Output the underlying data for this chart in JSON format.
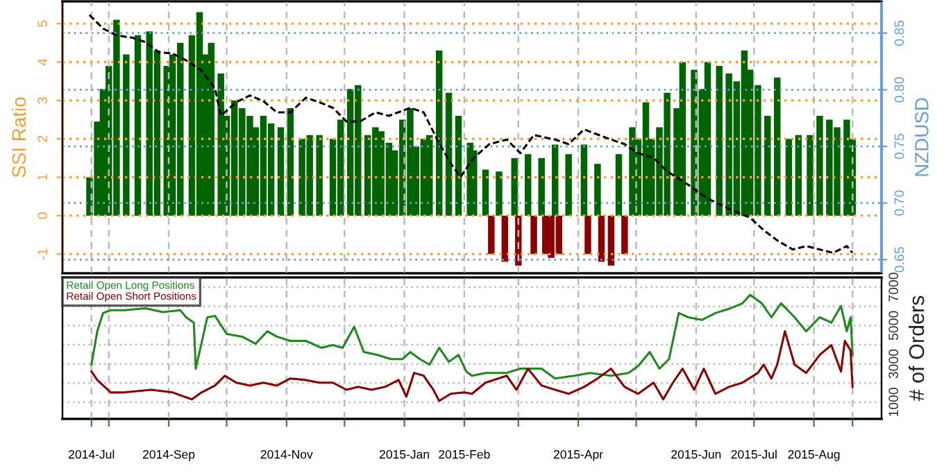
{
  "chart_data": [
    {
      "type": "bar",
      "ylabel": "SSI Ratio",
      "y2label": "NZDUSD",
      "grid": true,
      "tick_labels": "y",
      "xlim": [
        "2014-07-08",
        "2015-09-05"
      ],
      "xticks": [
        {
          "value": "2014-07-23",
          "label": null
        },
        {
          "value": "2014-08-01",
          "label": null
        },
        {
          "value": "2014-09-01",
          "label": null
        },
        {
          "value": "2014-10-01",
          "label": null
        },
        {
          "value": "2014-11-01",
          "label": null
        },
        {
          "value": "2014-12-01",
          "label": null
        },
        {
          "value": "2015-01-01",
          "label": null
        },
        {
          "value": "2015-02-01",
          "label": null
        },
        {
          "value": "2015-03-01",
          "label": null
        },
        {
          "value": "2015-04-01",
          "label": null
        },
        {
          "value": "2015-05-01",
          "label": null
        },
        {
          "value": "2015-06-01",
          "label": null
        },
        {
          "value": "2015-07-01",
          "label": null
        },
        {
          "value": "2015-08-01",
          "label": null
        },
        {
          "value": "2015-08-21",
          "label": null
        }
      ],
      "ylim": [
        -1.5,
        5.58
      ],
      "yticks": [
        -1,
        0,
        1,
        2,
        3,
        4,
        5
      ],
      "y2lim": [
        0.638,
        0.878
      ],
      "y2ticks": [
        {
          "value": 0.65,
          "label": "0.65"
        },
        {
          "value": 0.7,
          "label": "0.70"
        },
        {
          "value": 0.75,
          "label": "0.75"
        },
        {
          "value": 0.8,
          "label": "0.80"
        },
        {
          "value": 0.85,
          "label": "0.85"
        }
      ],
      "series": [
        {
          "type": "bar",
          "x": [
            "2014-07-22",
            "2014-07-26",
            "2014-07-29",
            "2014-08-01",
            "2014-08-05",
            "2014-08-10",
            "2014-08-16",
            "2014-08-22",
            "2014-08-26",
            "2014-08-31",
            "2014-09-03",
            "2014-09-07",
            "2014-09-13",
            "2014-09-17",
            "2014-09-20",
            "2014-09-23",
            "2014-09-28",
            "2014-10-01",
            "2014-10-05",
            "2014-10-09",
            "2014-10-13",
            "2014-10-16",
            "2014-10-20",
            "2014-10-24",
            "2014-10-29",
            "2014-11-03",
            "2014-11-09",
            "2014-11-13",
            "2014-11-18",
            "2014-11-25",
            "2014-11-29",
            "2014-12-04",
            "2014-12-08",
            "2014-12-13",
            "2014-12-17",
            "2014-12-20",
            "2014-12-24",
            "2014-12-27",
            "2014-12-31",
            "2015-01-04",
            "2015-01-07",
            "2015-01-11",
            "2015-01-14",
            "2015-01-19",
            "2015-01-24",
            "2015-01-29",
            "2015-02-04",
            "2015-02-06",
            "2015-02-12",
            "2015-02-15",
            "2015-02-19",
            "2015-02-22",
            "2015-02-27",
            "2015-03-01",
            "2015-03-06",
            "2015-03-09",
            "2015-03-13",
            "2015-03-15",
            "2015-03-18",
            "2015-03-20",
            "2015-03-22",
            "2015-03-27",
            "2015-04-04",
            "2015-04-06",
            "2015-04-11",
            "2015-04-13",
            "2015-04-18",
            "2015-04-22",
            "2015-04-25",
            "2015-04-29",
            "2015-05-02",
            "2015-05-06",
            "2015-05-09",
            "2015-05-13",
            "2015-05-17",
            "2015-05-22",
            "2015-05-25",
            "2015-05-31",
            "2015-06-04",
            "2015-06-07",
            "2015-06-13",
            "2015-06-18",
            "2015-06-22",
            "2015-06-26",
            "2015-06-29",
            "2015-07-03",
            "2015-07-08",
            "2015-07-13",
            "2015-07-19",
            "2015-07-24",
            "2015-07-30",
            "2015-08-04",
            "2015-08-09",
            "2015-08-13",
            "2015-08-18",
            "2015-08-21"
          ],
          "values": [
            1.0,
            2.45,
            3.3,
            3.9,
            5.1,
            4.2,
            4.7,
            4.8,
            4.3,
            3.9,
            4.2,
            4.5,
            4.7,
            5.3,
            4.2,
            4.5,
            3.7,
            2.6,
            3.0,
            2.8,
            2.6,
            2.3,
            2.6,
            2.4,
            2.3,
            2.8,
            2.0,
            2.1,
            2.1,
            2.0,
            2.5,
            3.3,
            3.4,
            2.1,
            2.3,
            2.2,
            1.9,
            1.7,
            2.5,
            2.8,
            1.8,
            2.0,
            2.1,
            4.3,
            3.2,
            2.6,
            1.9,
            1.7,
            1.2,
            -1.0,
            1.15,
            -1.2,
            1.5,
            -1.3,
            1.6,
            -1.0,
            1.5,
            -1.0,
            -1.1,
            1.85,
            -1.0,
            1.6,
            1.85,
            -1.0,
            1.35,
            -1.2,
            -1.3,
            1.6,
            -1.0,
            2.3,
            2.0,
            2.95,
            2.0,
            2.3,
            3.2,
            2.8,
            4.0,
            3.8,
            3.3,
            4.0,
            3.9,
            3.7,
            3.5,
            4.3,
            3.8,
            3.4,
            2.6,
            3.6,
            2.0,
            2.1,
            2.1,
            2.6,
            2.5,
            2.3,
            2.5,
            2.0
          ],
          "colors": [
            "#006400",
            "#006400",
            "#006400",
            "#006400",
            "#006400",
            "#006400",
            "#006400",
            "#006400",
            "#006400",
            "#006400",
            "#006400",
            "#006400",
            "#006400",
            "#006400",
            "#006400",
            "#006400",
            "#006400",
            "#006400",
            "#006400",
            "#006400",
            "#006400",
            "#006400",
            "#006400",
            "#006400",
            "#006400",
            "#006400",
            "#006400",
            "#006400",
            "#006400",
            "#006400",
            "#006400",
            "#006400",
            "#006400",
            "#006400",
            "#006400",
            "#006400",
            "#006400",
            "#006400",
            "#006400",
            "#006400",
            "#006400",
            "#006400",
            "#006400",
            "#006400",
            "#006400",
            "#006400",
            "#006400",
            "#006400",
            "#006400",
            "#8b0000",
            "#006400",
            "#8b0000",
            "#006400",
            "#8b0000",
            "#006400",
            "#8b0000",
            "#006400",
            "#8b0000",
            "#8b0000",
            "#006400",
            "#8b0000",
            "#006400",
            "#006400",
            "#8b0000",
            "#006400",
            "#8b0000",
            "#8b0000",
            "#006400",
            "#8b0000",
            "#006400",
            "#006400",
            "#006400",
            "#006400",
            "#006400",
            "#006400",
            "#006400",
            "#006400",
            "#006400",
            "#006400",
            "#006400",
            "#006400",
            "#006400",
            "#006400",
            "#006400",
            "#006400",
            "#006400",
            "#006400",
            "#006400",
            "#006400",
            "#006400",
            "#006400",
            "#006400",
            "#006400",
            "#006400",
            "#006400",
            "#006400"
          ]
        },
        {
          "type": "line",
          "axis": "y2",
          "color": "#000000",
          "line_style": "dashed",
          "x": [
            "2014-07-22",
            "2014-07-29",
            "2014-08-05",
            "2014-08-13",
            "2014-08-20",
            "2014-08-27",
            "2014-09-03",
            "2014-09-10",
            "2014-09-18",
            "2014-09-25",
            "2014-09-28",
            "2014-10-06",
            "2014-10-13",
            "2014-10-20",
            "2014-10-27",
            "2014-11-03",
            "2014-11-11",
            "2014-11-18",
            "2014-11-25",
            "2014-12-02",
            "2014-12-09",
            "2014-12-17",
            "2014-12-24",
            "2015-01-04",
            "2015-01-11",
            "2015-01-18",
            "2015-01-25",
            "2015-01-30",
            "2015-02-06",
            "2015-02-14",
            "2015-02-23",
            "2015-03-02",
            "2015-03-09",
            "2015-03-20",
            "2015-03-27",
            "2015-04-04",
            "2015-04-18",
            "2015-04-25",
            "2015-05-02",
            "2015-05-10",
            "2015-05-17",
            "2015-05-28",
            "2015-06-07",
            "2015-06-18",
            "2015-06-29",
            "2015-07-06",
            "2015-07-13",
            "2015-07-21",
            "2015-07-28",
            "2015-08-04",
            "2015-08-11",
            "2015-08-18",
            "2015-08-21"
          ],
          "values": [
            0.866,
            0.854,
            0.848,
            0.846,
            0.842,
            0.833,
            0.832,
            0.826,
            0.817,
            0.801,
            0.777,
            0.789,
            0.795,
            0.79,
            0.78,
            0.78,
            0.793,
            0.789,
            0.784,
            0.772,
            0.772,
            0.78,
            0.777,
            0.784,
            0.78,
            0.756,
            0.735,
            0.723,
            0.74,
            0.752,
            0.756,
            0.744,
            0.76,
            0.756,
            0.752,
            0.765,
            0.756,
            0.752,
            0.744,
            0.74,
            0.728,
            0.716,
            0.704,
            0.695,
            0.687,
            0.676,
            0.667,
            0.659,
            0.662,
            0.659,
            0.656,
            0.662,
            0.656
          ]
        }
      ]
    },
    {
      "type": "line",
      "y2label": "# of Orders",
      "grid": true,
      "legend": "top left",
      "xlim": [
        "2014-07-08",
        "2015-09-05"
      ],
      "xticks": [
        {
          "value": "2014-07-23",
          "label": "2014-Jul"
        },
        {
          "value": "2014-08-01",
          "label": null
        },
        {
          "value": "2014-09-01",
          "label": "2014-Sep"
        },
        {
          "value": "2014-10-01",
          "label": null
        },
        {
          "value": "2014-11-01",
          "label": "2014-Nov"
        },
        {
          "value": "2014-12-01",
          "label": null
        },
        {
          "value": "2015-01-01",
          "label": "2015-Jan"
        },
        {
          "value": "2015-02-01",
          "label": "2015-Feb"
        },
        {
          "value": "2015-03-01",
          "label": null
        },
        {
          "value": "2015-04-01",
          "label": "2015-Apr"
        },
        {
          "value": "2015-05-01",
          "label": null
        },
        {
          "value": "2015-06-01",
          "label": "2015-Jun"
        },
        {
          "value": "2015-07-01",
          "label": "2015-Jul"
        },
        {
          "value": "2015-08-01",
          "label": "2015-Aug"
        },
        {
          "value": "2015-08-21",
          "label": null
        }
      ],
      "y2lim": [
        130,
        7510
      ],
      "y2ticks": [
        1000,
        {
          "value": 2000,
          "label": null
        },
        3000,
        {
          "value": 4000,
          "label": null
        },
        5000,
        {
          "value": 6000,
          "label": null
        },
        7000
      ],
      "series": [
        {
          "name": "Retail Open Long Positions",
          "color": "#1e8a1e",
          "axis": "y2",
          "x": [
            "2014-07-23",
            "2014-07-26",
            "2014-07-29",
            "2014-08-02",
            "2014-08-09",
            "2014-08-20",
            "2014-08-29",
            "2014-09-07",
            "2014-09-10",
            "2014-09-14",
            "2014-09-15",
            "2014-09-21",
            "2014-09-25",
            "2014-10-01",
            "2014-10-09",
            "2014-10-16",
            "2014-10-22",
            "2014-10-27",
            "2014-11-03",
            "2014-11-11",
            "2014-11-19",
            "2014-11-25",
            "2014-11-30",
            "2014-12-06",
            "2014-12-11",
            "2014-12-18",
            "2014-12-25",
            "2014-12-31",
            "2015-01-04",
            "2015-01-09",
            "2015-01-14",
            "2015-01-19",
            "2015-01-24",
            "2015-01-29",
            "2015-02-02",
            "2015-02-05",
            "2015-02-12",
            "2015-02-23",
            "2015-03-02",
            "2015-03-13",
            "2015-03-20",
            "2015-03-30",
            "2015-04-07",
            "2015-04-18",
            "2015-04-27",
            "2015-05-02",
            "2015-05-08",
            "2015-05-13",
            "2015-05-18",
            "2015-05-23",
            "2015-05-28",
            "2015-06-04",
            "2015-06-11",
            "2015-06-18",
            "2015-06-25",
            "2015-06-29",
            "2015-07-05",
            "2015-07-10",
            "2015-07-15",
            "2015-07-22",
            "2015-07-28",
            "2015-08-04",
            "2015-08-10",
            "2015-08-15",
            "2015-08-18",
            "2015-08-20",
            "2015-08-21"
          ],
          "values": [
            2960,
            4700,
            5650,
            5800,
            5800,
            5900,
            5700,
            5800,
            5430,
            5150,
            2750,
            5430,
            5500,
            4560,
            4420,
            4050,
            4700,
            4420,
            4200,
            4200,
            3840,
            3980,
            3840,
            4930,
            3620,
            3470,
            3250,
            3250,
            3620,
            3250,
            2960,
            3840,
            3110,
            3470,
            2600,
            2380,
            2530,
            2530,
            2750,
            2750,
            2240,
            2380,
            2530,
            2380,
            2530,
            2890,
            3620,
            2750,
            3250,
            5650,
            5430,
            5290,
            5650,
            5870,
            6160,
            6600,
            6160,
            5430,
            6160,
            5430,
            4700,
            5430,
            5150,
            6020,
            4700,
            5430,
            3470
          ]
        },
        {
          "name": "Retail Open Short Positions",
          "color": "#8b0000",
          "axis": "y2",
          "x": [
            "2014-07-23",
            "2014-07-26",
            "2014-08-02",
            "2014-08-09",
            "2014-08-23",
            "2014-09-03",
            "2014-09-13",
            "2014-09-18",
            "2014-09-25",
            "2014-09-30",
            "2014-10-06",
            "2014-10-13",
            "2014-10-20",
            "2014-10-27",
            "2014-11-03",
            "2014-11-11",
            "2014-11-18",
            "2014-11-25",
            "2014-12-02",
            "2014-12-08",
            "2014-12-15",
            "2014-12-22",
            "2014-12-29",
            "2015-01-02",
            "2015-01-06",
            "2015-01-11",
            "2015-01-16",
            "2015-01-19",
            "2015-01-25",
            "2015-02-01",
            "2015-02-05",
            "2015-02-12",
            "2015-02-23",
            "2015-02-28",
            "2015-03-06",
            "2015-03-13",
            "2015-03-20",
            "2015-03-27",
            "2015-04-04",
            "2015-04-11",
            "2015-04-18",
            "2015-04-25",
            "2015-05-02",
            "2015-05-10",
            "2015-05-15",
            "2015-05-20",
            "2015-05-25",
            "2015-05-31",
            "2015-06-05",
            "2015-06-11",
            "2015-06-18",
            "2015-06-25",
            "2015-07-03",
            "2015-07-06",
            "2015-07-10",
            "2015-07-13",
            "2015-07-17",
            "2015-07-22",
            "2015-07-28",
            "2015-08-04",
            "2015-08-10",
            "2015-08-15",
            "2015-08-17",
            "2015-08-20",
            "2015-08-21"
          ],
          "values": [
            2600,
            2160,
            1510,
            1510,
            1650,
            1510,
            1150,
            1510,
            1870,
            2380,
            2020,
            1870,
            2020,
            1870,
            2240,
            2160,
            2020,
            2020,
            1650,
            1800,
            1650,
            1800,
            2160,
            1290,
            2530,
            2380,
            1650,
            1070,
            1440,
            1510,
            1440,
            2020,
            2380,
            1650,
            2750,
            1870,
            1650,
            1440,
            1800,
            2240,
            2750,
            1800,
            1440,
            2020,
            1150,
            2020,
            2750,
            1650,
            2750,
            1440,
            1800,
            2020,
            2530,
            2960,
            2240,
            2960,
            4700,
            2960,
            2530,
            3470,
            3980,
            2600,
            4200,
            3690,
            1800
          ]
        }
      ]
    }
  ]
}
